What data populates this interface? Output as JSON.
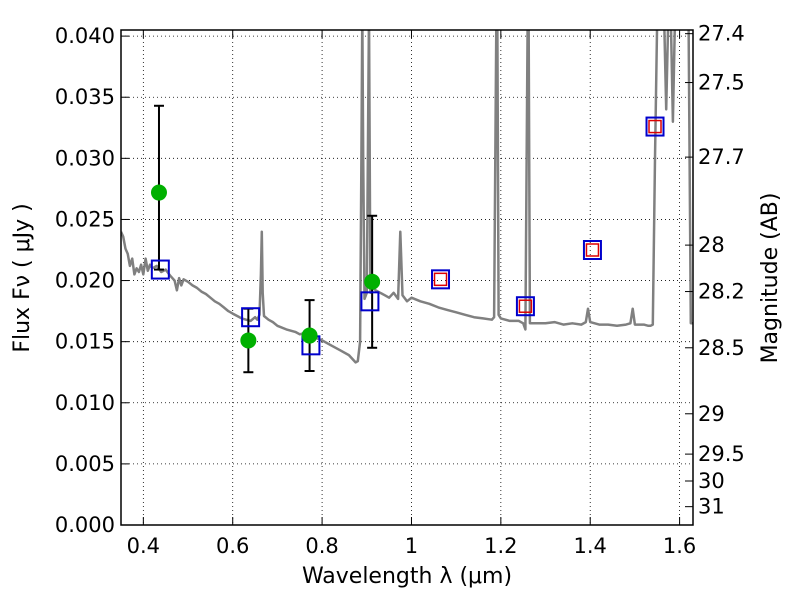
{
  "chart_data": {
    "type": "scatter",
    "xlabel": "Wavelength  λ (μm)",
    "ylabel": "Flux  Fν  ( μJy )",
    "y2label": "Magnitude (AB)",
    "xlim": [
      0.35,
      1.63
    ],
    "ylim": [
      0.0,
      0.0405
    ],
    "grid": true,
    "x_ticks": [
      0.4,
      0.6,
      0.8,
      1.0,
      1.2,
      1.4,
      1.6
    ],
    "x_tick_labels": [
      "0.4",
      "0.6",
      "0.8",
      "1",
      "1.2",
      "1.4",
      "1.6"
    ],
    "y_ticks": [
      0.0,
      0.005,
      0.01,
      0.015,
      0.02,
      0.025,
      0.03,
      0.035,
      0.04
    ],
    "y_tick_labels": [
      "0.000",
      "0.005",
      "0.010",
      "0.015",
      "0.020",
      "0.025",
      "0.030",
      "0.035",
      "0.040"
    ],
    "y2_ticks": [
      {
        "label": "27.4",
        "flux": 0.0402
      },
      {
        "label": "27.5",
        "flux": 0.0362
      },
      {
        "label": "27.7",
        "flux": 0.0301
      },
      {
        "label": "28",
        "flux": 0.0229
      },
      {
        "label": "28.2",
        "flux": 0.0191
      },
      {
        "label": "28.5",
        "flux": 0.0145
      },
      {
        "label": "29",
        "flux": 0.0091
      },
      {
        "label": "29.5",
        "flux": 0.0058
      },
      {
        "label": "30",
        "flux": 0.0036
      },
      {
        "label": "31",
        "flux": 0.0015
      }
    ],
    "colors": {
      "sed": "#808080",
      "observed": "#00b000",
      "model_box": "#0000cc",
      "model_inner": "#dd0000",
      "errorbar": "#000000"
    },
    "series": [
      {
        "kind": "line",
        "points": [
          [
            0.35,
            0.024
          ],
          [
            0.355,
            0.0236
          ],
          [
            0.36,
            0.0226
          ],
          [
            0.365,
            0.0222
          ],
          [
            0.37,
            0.0212
          ],
          [
            0.375,
            0.0218
          ],
          [
            0.38,
            0.0205
          ],
          [
            0.385,
            0.021
          ],
          [
            0.39,
            0.0207
          ],
          [
            0.395,
            0.0213
          ],
          [
            0.4,
            0.0205
          ],
          [
            0.405,
            0.0218
          ],
          [
            0.41,
            0.0208
          ],
          [
            0.415,
            0.0213
          ],
          [
            0.42,
            0.021
          ],
          [
            0.43,
            0.0212
          ],
          [
            0.44,
            0.0207
          ],
          [
            0.45,
            0.0209
          ],
          [
            0.46,
            0.0204
          ],
          [
            0.47,
            0.02
          ],
          [
            0.475,
            0.0192
          ],
          [
            0.48,
            0.0202
          ],
          [
            0.485,
            0.0196
          ],
          [
            0.49,
            0.0201
          ],
          [
            0.5,
            0.0199
          ],
          [
            0.51,
            0.0196
          ],
          [
            0.52,
            0.0194
          ],
          [
            0.53,
            0.0191
          ],
          [
            0.54,
            0.0189
          ],
          [
            0.55,
            0.0186
          ],
          [
            0.56,
            0.0183
          ],
          [
            0.57,
            0.0181
          ],
          [
            0.58,
            0.0178
          ],
          [
            0.59,
            0.0175
          ],
          [
            0.6,
            0.0173
          ],
          [
            0.61,
            0.0171
          ],
          [
            0.62,
            0.0169
          ],
          [
            0.63,
            0.0168
          ],
          [
            0.64,
            0.0167
          ],
          [
            0.65,
            0.017
          ],
          [
            0.655,
            0.0168
          ],
          [
            0.66,
            0.0172
          ],
          [
            0.663,
            0.0205
          ],
          [
            0.665,
            0.024
          ],
          [
            0.667,
            0.019
          ],
          [
            0.67,
            0.0171
          ],
          [
            0.68,
            0.0168
          ],
          [
            0.69,
            0.0166
          ],
          [
            0.7,
            0.0163
          ],
          [
            0.72,
            0.016
          ],
          [
            0.74,
            0.0158
          ],
          [
            0.75,
            0.0156
          ],
          [
            0.76,
            0.0157
          ],
          [
            0.77,
            0.0155
          ],
          [
            0.78,
            0.0154
          ],
          [
            0.8,
            0.0151
          ],
          [
            0.82,
            0.0147
          ],
          [
            0.84,
            0.0143
          ],
          [
            0.86,
            0.0139
          ],
          [
            0.87,
            0.0135
          ],
          [
            0.875,
            0.0133
          ],
          [
            0.88,
            0.0134
          ],
          [
            0.885,
            0.015
          ],
          [
            0.888,
            0.03
          ],
          [
            0.89,
            0.042
          ],
          [
            0.892,
            0.03
          ],
          [
            0.895,
            0.0185
          ],
          [
            0.9,
            0.019
          ],
          [
            0.905,
            0.042
          ],
          [
            0.908,
            0.019
          ],
          [
            0.91,
            0.0195
          ],
          [
            0.92,
            0.0192
          ],
          [
            0.93,
            0.019
          ],
          [
            0.94,
            0.0188
          ],
          [
            0.95,
            0.0186
          ],
          [
            0.96,
            0.019
          ],
          [
            0.97,
            0.0185
          ],
          [
            0.975,
            0.024
          ],
          [
            0.98,
            0.0188
          ],
          [
            0.99,
            0.0183
          ],
          [
            1.0,
            0.0186
          ],
          [
            1.02,
            0.0183
          ],
          [
            1.04,
            0.0181
          ],
          [
            1.06,
            0.0178
          ],
          [
            1.08,
            0.0176
          ],
          [
            1.1,
            0.0174
          ],
          [
            1.12,
            0.0172
          ],
          [
            1.14,
            0.017
          ],
          [
            1.16,
            0.0169
          ],
          [
            1.18,
            0.0168
          ],
          [
            1.185,
            0.017
          ],
          [
            1.19,
            0.042
          ],
          [
            1.192,
            0.042
          ],
          [
            1.195,
            0.0172
          ],
          [
            1.2,
            0.0169
          ],
          [
            1.22,
            0.0167
          ],
          [
            1.24,
            0.0167
          ],
          [
            1.25,
            0.0165
          ],
          [
            1.255,
            0.016
          ],
          [
            1.26,
            0.042
          ],
          [
            1.262,
            0.042
          ],
          [
            1.265,
            0.0165
          ],
          [
            1.28,
            0.0165
          ],
          [
            1.3,
            0.0165
          ],
          [
            1.32,
            0.0166
          ],
          [
            1.34,
            0.0164
          ],
          [
            1.36,
            0.0165
          ],
          [
            1.38,
            0.0164
          ],
          [
            1.39,
            0.0166
          ],
          [
            1.395,
            0.0177
          ],
          [
            1.4,
            0.0166
          ],
          [
            1.42,
            0.0164
          ],
          [
            1.44,
            0.0164
          ],
          [
            1.46,
            0.0163
          ],
          [
            1.48,
            0.0164
          ],
          [
            1.49,
            0.0165
          ],
          [
            1.495,
            0.0177
          ],
          [
            1.5,
            0.0164
          ],
          [
            1.52,
            0.0164
          ],
          [
            1.53,
            0.0163
          ],
          [
            1.535,
            0.0163
          ],
          [
            1.54,
            0.0164
          ],
          [
            1.545,
            0.03
          ],
          [
            1.55,
            0.042
          ],
          [
            1.56,
            0.042
          ],
          [
            1.565,
            0.042
          ],
          [
            1.57,
            0.034
          ],
          [
            1.575,
            0.042
          ],
          [
            1.58,
            0.042
          ],
          [
            1.585,
            0.033
          ],
          [
            1.59,
            0.042
          ],
          [
            1.6,
            0.042
          ],
          [
            1.61,
            0.042
          ],
          [
            1.62,
            0.042
          ],
          [
            1.625,
            0.0165
          ],
          [
            1.63,
            0.0165
          ]
        ]
      },
      {
        "kind": "points",
        "points": [
          {
            "x": 0.435,
            "y": 0.0272,
            "yerr_low": 0.0209,
            "yerr_high": 0.0343
          },
          {
            "x": 0.635,
            "y": 0.0151,
            "yerr_low": 0.0125,
            "yerr_high": 0.0177
          },
          {
            "x": 0.772,
            "y": 0.0155,
            "yerr_low": 0.0126,
            "yerr_high": 0.0184
          },
          {
            "x": 0.912,
            "y": 0.0199,
            "yerr_low": 0.0145,
            "yerr_high": 0.0253
          }
        ]
      },
      {
        "kind": "boxes",
        "points": [
          {
            "x": 0.438,
            "y": 0.0209
          },
          {
            "x": 0.64,
            "y": 0.017
          },
          {
            "x": 0.775,
            "y": 0.0147
          },
          {
            "x": 0.907,
            "y": 0.0183
          },
          {
            "x": 1.065,
            "y": 0.0201
          },
          {
            "x": 1.255,
            "y": 0.0179
          },
          {
            "x": 1.405,
            "y": 0.0225
          },
          {
            "x": 1.545,
            "y": 0.0326
          }
        ],
        "inner_marked": [
          false,
          false,
          false,
          false,
          true,
          true,
          true,
          true
        ]
      }
    ]
  }
}
